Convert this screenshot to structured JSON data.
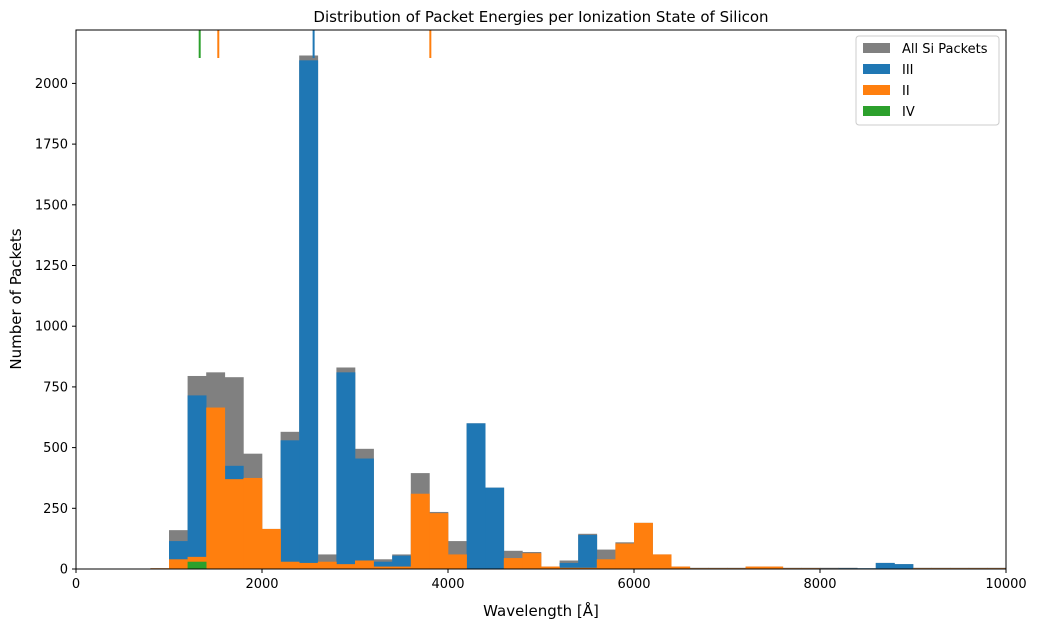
{
  "chart_data": {
    "type": "bar",
    "title": "Distribution of Packet Energies per Ionization State of Silicon",
    "xlabel": "Wavelength [Å]",
    "ylabel": "Number of Packets",
    "xlim": [
      0,
      10000
    ],
    "ylim": [
      0,
      2220
    ],
    "xticks": [
      0,
      2000,
      4000,
      6000,
      8000,
      10000
    ],
    "yticks": [
      0,
      250,
      500,
      750,
      1000,
      1250,
      1500,
      1750,
      2000
    ],
    "legend_position": "upper-right",
    "bin_edges": [
      800,
      1000,
      1200,
      1400,
      1600,
      1800,
      2000,
      2200,
      2400,
      2600,
      2800,
      3000,
      3200,
      3400,
      3600,
      3800,
      4000,
      4200,
      4400,
      4600,
      4800,
      5000,
      5200,
      5400,
      5600,
      5800,
      6000,
      6200,
      6400,
      6600,
      6800,
      7000,
      7200,
      7400,
      7600,
      7800,
      8000,
      8200,
      8400,
      8600,
      8800,
      9000,
      9200,
      9400,
      9600,
      9800,
      10000
    ],
    "series": [
      {
        "name": "All Si Packets",
        "color": "#808080",
        "values": [
          3,
          160,
          795,
          810,
          790,
          475,
          165,
          565,
          2115,
          60,
          830,
          495,
          40,
          60,
          395,
          235,
          115,
          600,
          335,
          75,
          70,
          10,
          35,
          145,
          80,
          110,
          190,
          60,
          10,
          5,
          5,
          5,
          10,
          10,
          5,
          5,
          5,
          5,
          3,
          25,
          20,
          5,
          5,
          5,
          5,
          5
        ]
      },
      {
        "name": "III",
        "color": "#1f77b4",
        "values": [
          0,
          115,
          715,
          0,
          425,
          0,
          0,
          530,
          2095,
          0,
          810,
          455,
          30,
          55,
          0,
          0,
          0,
          600,
          335,
          0,
          0,
          0,
          25,
          140,
          0,
          0,
          0,
          0,
          0,
          0,
          0,
          0,
          0,
          0,
          0,
          0,
          0,
          3,
          3,
          25,
          20,
          0,
          0,
          0,
          0,
          0
        ]
      },
      {
        "name": "II",
        "color": "#ff7f0e",
        "values": [
          3,
          40,
          50,
          665,
          370,
          375,
          165,
          30,
          25,
          30,
          20,
          35,
          10,
          10,
          310,
          230,
          60,
          0,
          0,
          45,
          65,
          10,
          5,
          5,
          40,
          105,
          190,
          60,
          10,
          3,
          3,
          3,
          10,
          10,
          3,
          3,
          0,
          0,
          0,
          0,
          0,
          3,
          3,
          3,
          3,
          3
        ]
      },
      {
        "name": "IV",
        "color": "#2ca02c",
        "values": [
          0,
          0,
          30,
          0,
          0,
          0,
          0,
          0,
          0,
          0,
          0,
          0,
          0,
          0,
          0,
          0,
          0,
          0,
          0,
          0,
          0,
          0,
          0,
          0,
          0,
          0,
          0,
          0,
          0,
          0,
          0,
          0,
          0,
          0,
          0,
          0,
          0,
          0,
          0,
          0,
          0,
          0,
          0,
          0,
          0,
          0
        ]
      }
    ],
    "marker_lines": [
      {
        "x": 1330,
        "color": "#2ca02c"
      },
      {
        "x": 1530,
        "color": "#ff7f0e"
      },
      {
        "x": 2555,
        "color": "#1f77b4"
      },
      {
        "x": 3810,
        "color": "#ff7f0e"
      }
    ]
  }
}
